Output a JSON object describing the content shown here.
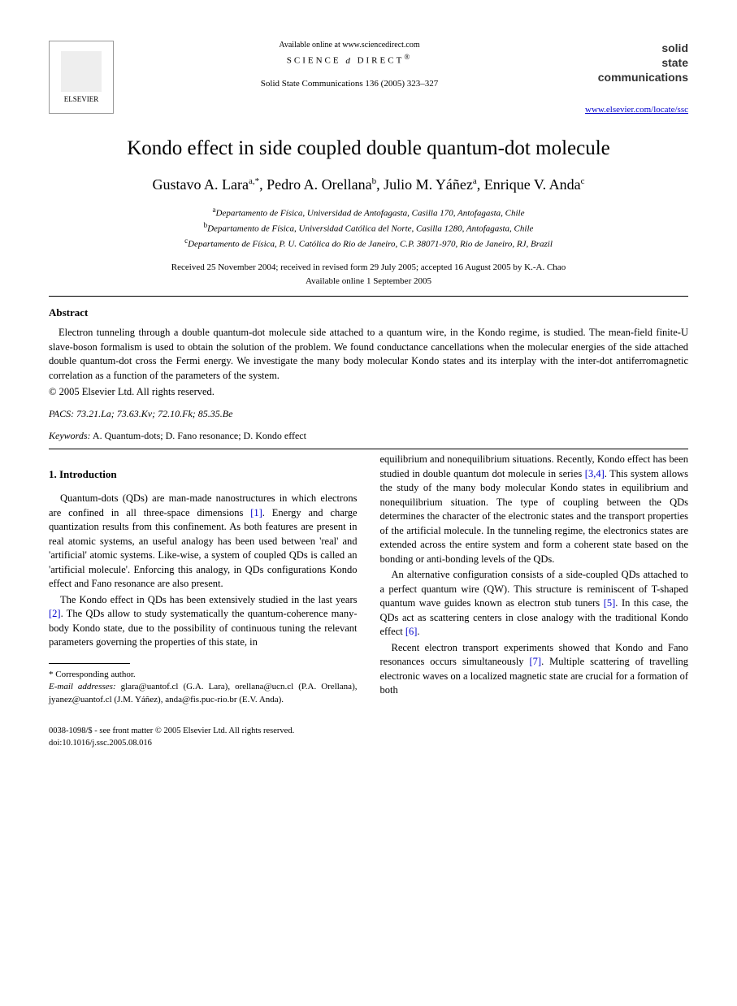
{
  "header": {
    "publisher": "ELSEVIER",
    "available_online": "Available online at www.sciencedirect.com",
    "science_direct": "SCIENCE",
    "direct_word": "DIRECT",
    "journal_ref": "Solid State Communications 136 (2005) 323–327",
    "journal_name_1": "solid",
    "journal_name_2": "state",
    "journal_name_3": "communications",
    "journal_url": "www.elsevier.com/locate/ssc"
  },
  "title": "Kondo effect in side coupled double quantum-dot molecule",
  "authors": {
    "a1_name": "Gustavo A. Lara",
    "a1_sup": "a,*",
    "a2_name": "Pedro A. Orellana",
    "a2_sup": "b",
    "a3_name": "Julio M. Yáñez",
    "a3_sup": "a",
    "a4_name": "Enrique V. Anda",
    "a4_sup": "c"
  },
  "affiliations": {
    "a": "Departamento de Física, Universidad de Antofagasta, Casilla 170, Antofagasta, Chile",
    "b": "Departamento de Física, Universidad Católica del Norte, Casilla 1280, Antofagasta, Chile",
    "c": "Departamento de Física, P. U. Católica do Rio de Janeiro, C.P. 38071-970, Rio de Janeiro, RJ, Brazil"
  },
  "dates": {
    "received": "Received 25 November 2004; received in revised form 29 July 2005; accepted 16 August 2005 by K.-A. Chao",
    "online": "Available online 1 September 2005"
  },
  "abstract": {
    "heading": "Abstract",
    "text": "Electron tunneling through a double quantum-dot molecule side attached to a quantum wire, in the Kondo regime, is studied. The mean-field finite-U slave-boson formalism is used to obtain the solution of the problem. We found conductance cancellations when the molecular energies of the side attached double quantum-dot cross the Fermi energy. We investigate the many body molecular Kondo states and its interplay with the inter-dot antiferromagnetic correlation as a function of the parameters of the system.",
    "copyright": "© 2005 Elsevier Ltd. All rights reserved."
  },
  "pacs": {
    "label": "PACS:",
    "values": "73.21.La; 73.63.Kv; 72.10.Fk; 85.35.Be"
  },
  "keywords": {
    "label": "Keywords:",
    "values": "A. Quantum-dots; D. Fano resonance; D. Kondo effect"
  },
  "section1_heading": "1. Introduction",
  "body": {
    "left_p1a": "Quantum-dots (QDs) are man-made nanostructures in which electrons are confined in all three-space dimensions ",
    "left_p1_cite1": "[1]",
    "left_p1b": ". Energy and charge quantization results from this confinement. As both features are present in real atomic systems, an useful analogy has been used between 'real' and 'artificial' atomic systems. Like-wise, a system of coupled QDs is called an 'artificial molecule'. Enforcing this analogy, in QDs configurations Kondo effect and Fano resonance are also present.",
    "left_p2a": "The Kondo effect in QDs has been extensively studied in the last years ",
    "left_p2_cite": "[2]",
    "left_p2b": ". The QDs allow to study systematically the quantum-coherence many-body Kondo state, due to the possibility of continuous tuning the relevant parameters governing the properties of this state, in",
    "right_p1a": "equilibrium and nonequilibrium situations. Recently, Kondo effect has been studied in double quantum dot molecule in series ",
    "right_p1_cite1": "[3,4]",
    "right_p1b": ". This system allows the study of the many body molecular Kondo states in equilibrium and nonequilibrium situation. The type of coupling between the QDs determines the character of the electronic states and the transport properties of the artificial molecule. In the tunneling regime, the electronics states are extended across the entire system and form a coherent state based on the bonding or anti-bonding levels of the QDs.",
    "right_p2a": "An alternative configuration consists of a side-coupled QDs attached to a perfect quantum wire (QW). This structure is reminiscent of T-shaped quantum wave guides known as electron stub tuners ",
    "right_p2_cite1": "[5]",
    "right_p2b": ". In this case, the QDs act as scattering centers in close analogy with the traditional Kondo effect ",
    "right_p2_cite2": "[6]",
    "right_p2c": ".",
    "right_p3a": "Recent electron transport experiments showed that Kondo and Fano resonances occurs simultaneously ",
    "right_p3_cite": "[7]",
    "right_p3b": ". Multiple scattering of travelling electronic waves on a localized magnetic state are crucial for a formation of both"
  },
  "footnotes": {
    "corr": "* Corresponding author.",
    "email_label": "E-mail addresses:",
    "emails": "glara@uantof.cl (G.A. Lara), orellana@ucn.cl (P.A. Orellana), jyanez@uantof.cl (J.M. Yáñez), anda@fis.puc-rio.br (E.V. Anda)."
  },
  "footer": {
    "line1": "0038-1098/$ - see front matter © 2005 Elsevier Ltd. All rights reserved.",
    "line2": "doi:10.1016/j.ssc.2005.08.016"
  }
}
